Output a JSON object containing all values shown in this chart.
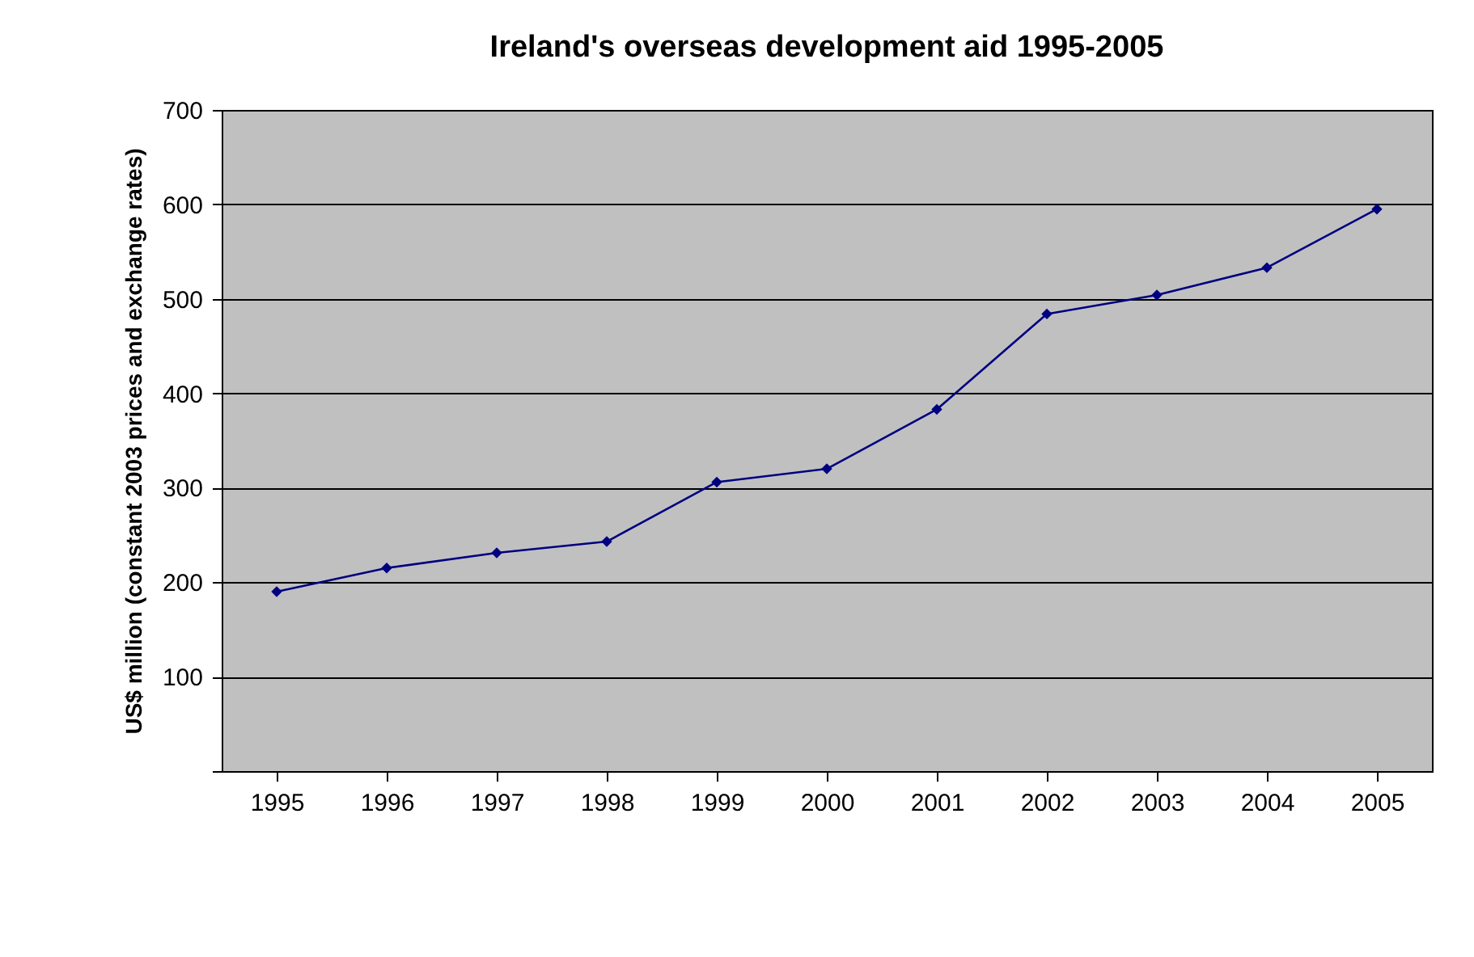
{
  "chart_data": {
    "type": "line",
    "title": "Ireland's overseas development aid 1995-2005",
    "ylabel": "US$ million (constant 2003 prices and exchange rates)",
    "categories": [
      "1995",
      "1996",
      "1997",
      "1998",
      "1999",
      "2000",
      "2001",
      "2002",
      "2003",
      "2004",
      "2005"
    ],
    "series": [
      {
        "color": "#000080",
        "values": [
          190,
          215,
          231,
          243,
          306,
          320,
          383,
          484,
          504,
          533,
          595
        ]
      }
    ],
    "ylim": [
      0,
      700
    ],
    "yticks": [
      {
        "value": 0,
        "label": null
      },
      100,
      200,
      300,
      400,
      500,
      600,
      700
    ],
    "grid": "y",
    "marker": "diamond",
    "line_style": "solid"
  }
}
